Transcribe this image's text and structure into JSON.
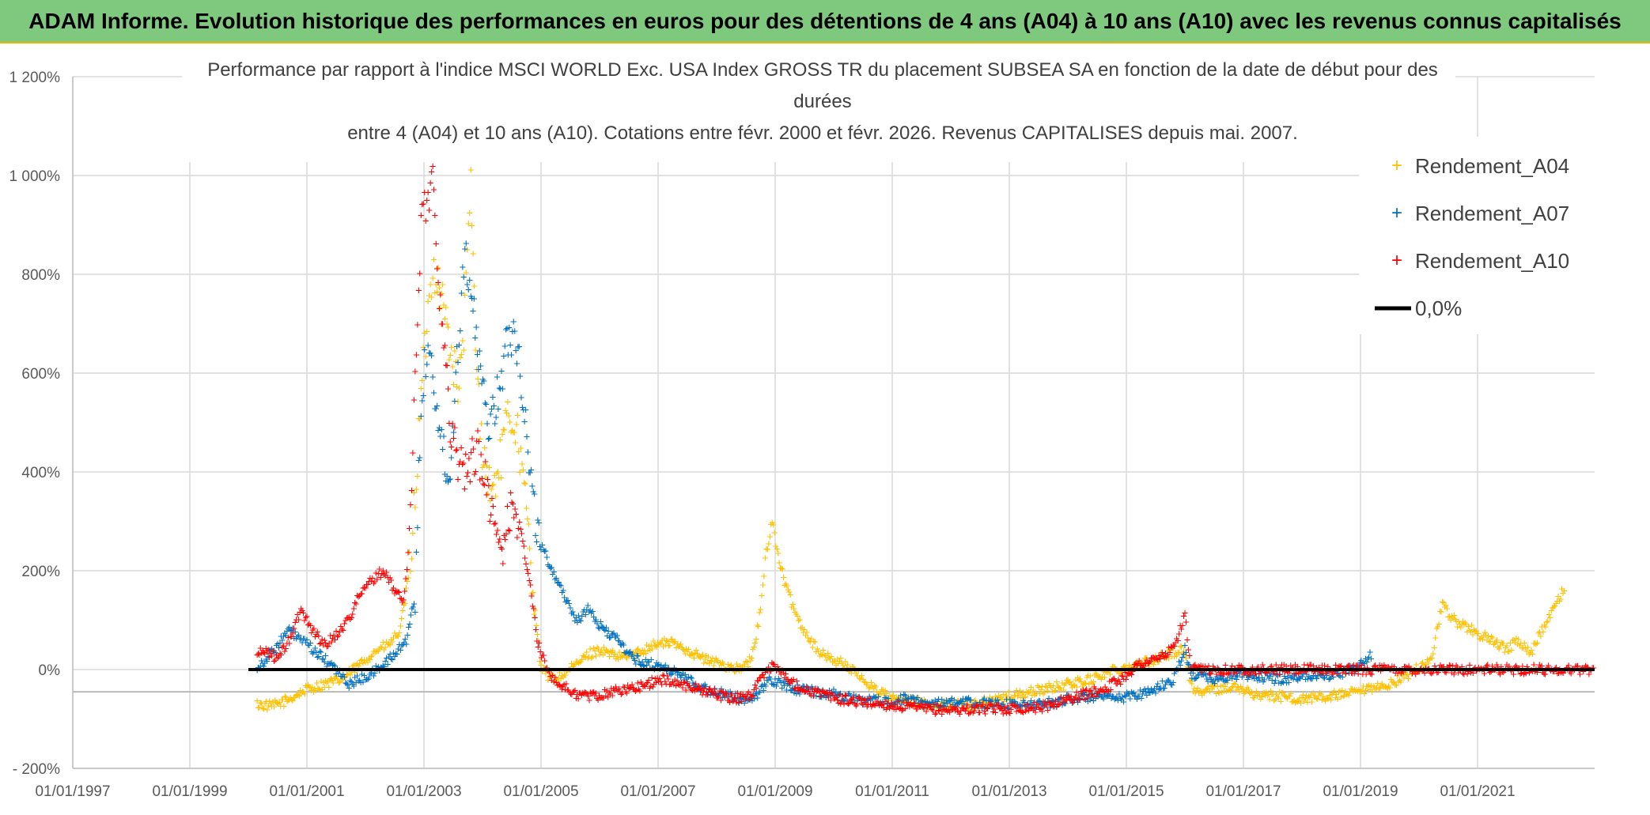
{
  "header": {
    "title": "ADAM Informe. Evolution historique des performances en euros pour des détentions de 4 ans (A04) à 10 ans (A10) avec les revenus connus capitalisés"
  },
  "chart_data": {
    "type": "scatter",
    "title_lines": [
      "Performance par rapport à l'indice MSCI WORLD Exc. USA Index GROSS TR  du placement SUBSEA SA en fonction de la date de début pour des",
      "durées",
      "entre 4 (A04) et 10 ans (A10). Cotations entre févr. 2000 et févr. 2026. Revenus CAPITALISES depuis mai. 2007."
    ],
    "xlabel": "",
    "ylabel": "",
    "x_tick_labels": [
      "01/01/1997",
      "01/01/1999",
      "01/01/2001",
      "01/01/2003",
      "01/01/2005",
      "01/01/2007",
      "01/01/2009",
      "01/01/2011",
      "01/01/2013",
      "01/01/2015",
      "01/01/2017",
      "01/01/2019",
      "01/01/2021"
    ],
    "x_tick_years": [
      1997,
      1999,
      2001,
      2003,
      2005,
      2007,
      2009,
      2011,
      2013,
      2015,
      2017,
      2019,
      2021
    ],
    "xlim": [
      1997.0,
      2023.0
    ],
    "y_tick_labels": [
      "- 200%",
      "0%",
      "200%",
      "400%",
      "600%",
      "800%",
      "1 000%",
      "1 200%"
    ],
    "y_tick_values": [
      -200,
      0,
      200,
      400,
      600,
      800,
      1000,
      1200
    ],
    "ylim": [
      -200,
      1200
    ],
    "legend_position": "top-right",
    "series": [
      {
        "name": "Rendement_A04",
        "marker": "+",
        "color": "#ffc000",
        "x": [
          2000.15,
          2000.4,
          2000.7,
          2001.0,
          2001.3,
          2001.6,
          2001.8,
          2002.0,
          2002.2,
          2002.4,
          2002.6,
          2002.75,
          2002.85,
          2002.95,
          2003.05,
          2003.15,
          2003.3,
          2003.45,
          2003.6,
          2003.7,
          2003.8,
          2003.9,
          2004.0,
          2004.15,
          2004.3,
          2004.45,
          2004.6,
          2004.75,
          2004.9,
          2005.0,
          2005.2,
          2005.4,
          2005.6,
          2005.8,
          2006.0,
          2006.3,
          2006.6,
          2006.9,
          2007.2,
          2007.5,
          2007.8,
          2008.1,
          2008.4,
          2008.6,
          2008.75,
          2008.85,
          2008.95,
          2009.05,
          2009.2,
          2009.4,
          2009.6,
          2009.8,
          2010.0,
          2010.2,
          2010.4,
          2010.6,
          2010.8,
          2011.0,
          2011.3,
          2011.6,
          2012.0,
          2012.4,
          2012.8,
          2013.2,
          2013.6,
          2014.0,
          2014.4,
          2014.8,
          2015.2,
          2015.5,
          2015.8,
          2016.0,
          2016.1,
          2016.2,
          2016.5,
          2016.8,
          2017.2,
          2017.6,
          2018.0,
          2018.4,
          2018.8,
          2019.2,
          2019.5,
          2019.8,
          2020.1,
          2020.2,
          2020.4,
          2020.6,
          2020.9,
          2021.2,
          2021.5,
          2021.7,
          2021.9,
          2022.1,
          2022.3,
          2022.5
        ],
        "values": [
          -70,
          -75,
          -60,
          -40,
          -30,
          -20,
          0,
          20,
          40,
          50,
          80,
          200,
          350,
          550,
          700,
          820,
          760,
          650,
          560,
          720,
          980,
          600,
          450,
          350,
          420,
          520,
          480,
          320,
          120,
          0,
          -20,
          -10,
          10,
          30,
          40,
          25,
          30,
          50,
          55,
          40,
          20,
          10,
          0,
          20,
          120,
          240,
          300,
          230,
          160,
          100,
          60,
          30,
          20,
          10,
          -10,
          -30,
          -45,
          -60,
          -65,
          -70,
          -72,
          -70,
          -60,
          -50,
          -40,
          -30,
          -20,
          0,
          10,
          20,
          35,
          40,
          -30,
          -45,
          -40,
          -35,
          -50,
          -55,
          -60,
          -55,
          -50,
          -40,
          -30,
          -10,
          10,
          20,
          130,
          100,
          80,
          60,
          40,
          60,
          30,
          80,
          120,
          170
        ]
      },
      {
        "name": "Rendement_A07",
        "marker": "+",
        "color": "#0070c0",
        "x": [
          2000.15,
          2000.3,
          2000.5,
          2000.7,
          2000.9,
          2001.1,
          2001.3,
          2001.5,
          2001.7,
          2001.9,
          2002.1,
          2002.3,
          2002.5,
          2002.7,
          2002.85,
          2002.95,
          2003.05,
          2003.15,
          2003.3,
          2003.45,
          2003.6,
          2003.7,
          2003.8,
          2003.95,
          2004.1,
          2004.25,
          2004.4,
          2004.55,
          2004.7,
          2004.85,
          2005.0,
          2005.2,
          2005.4,
          2005.6,
          2005.8,
          2006.0,
          2006.3,
          2006.6,
          2006.9,
          2007.2,
          2007.5,
          2007.8,
          2008.1,
          2008.4,
          2008.7,
          2008.9,
          2009.1,
          2009.4,
          2009.7,
          2010.0,
          2010.4,
          2010.8,
          2011.2,
          2011.6,
          2012.0,
          2012.4,
          2012.8,
          2013.2,
          2013.6,
          2014.0,
          2014.4,
          2014.8,
          2015.2,
          2015.5,
          2015.8,
          2016.0,
          2016.1,
          2016.3,
          2016.6,
          2016.9,
          2017.3,
          2017.7,
          2018.1,
          2018.5,
          2018.9,
          2019.2
        ],
        "values": [
          5,
          20,
          50,
          80,
          60,
          40,
          20,
          0,
          -30,
          -20,
          -10,
          10,
          30,
          60,
          150,
          550,
          650,
          600,
          450,
          400,
          700,
          850,
          780,
          600,
          500,
          550,
          650,
          700,
          550,
          350,
          250,
          200,
          150,
          100,
          120,
          90,
          60,
          20,
          10,
          0,
          -20,
          -40,
          -50,
          -60,
          -55,
          -20,
          -30,
          -40,
          -45,
          -50,
          -60,
          -65,
          -60,
          -70,
          -65,
          -68,
          -70,
          -72,
          -70,
          -60,
          -55,
          -60,
          -50,
          -40,
          -20,
          40,
          -10,
          -15,
          -20,
          -10,
          -15,
          -20,
          -10,
          -10,
          0,
          30
        ]
      },
      {
        "name": "Rendement_A10",
        "marker": "+",
        "color": "#ff0000",
        "x": [
          2000.15,
          2000.3,
          2000.5,
          2000.7,
          2000.9,
          2001.1,
          2001.3,
          2001.5,
          2001.7,
          2001.9,
          2002.1,
          2002.3,
          2002.5,
          2002.65,
          2002.75,
          2002.85,
          2002.95,
          2003.05,
          2003.15,
          2003.3,
          2003.45,
          2003.6,
          2003.75,
          2003.9,
          2004.05,
          2004.2,
          2004.35,
          2004.5,
          2004.65,
          2004.8,
          2004.95,
          2005.1,
          2005.3,
          2005.6,
          2005.9,
          2006.2,
          2006.5,
          2006.8,
          2007.1,
          2007.4,
          2007.7,
          2008.0,
          2008.3,
          2008.6,
          2008.85,
          2009.0,
          2009.2,
          2009.5,
          2009.8,
          2010.1,
          2010.4,
          2010.8,
          2011.2,
          2011.6,
          2012.0,
          2012.4,
          2012.8,
          2013.2,
          2013.6,
          2014.0,
          2014.3,
          2014.6,
          2014.9,
          2015.2,
          2015.5,
          2015.8,
          2016.0,
          2016.1,
          2016.5,
          2017.0,
          2017.5,
          2018.0,
          2018.5,
          2019.0,
          2019.5,
          2020.0,
          2020.5,
          2021.0,
          2021.5,
          2022.0,
          2022.5,
          2023.0
        ],
        "values": [
          30,
          40,
          20,
          60,
          120,
          80,
          50,
          70,
          100,
          150,
          180,
          200,
          160,
          140,
          250,
          600,
          900,
          950,
          1000,
          700,
          500,
          420,
          400,
          450,
          380,
          300,
          230,
          350,
          280,
          180,
          50,
          0,
          -30,
          -50,
          -55,
          -45,
          -40,
          -30,
          -20,
          -30,
          -40,
          -50,
          -60,
          -50,
          0,
          10,
          -20,
          -40,
          -50,
          -60,
          -65,
          -70,
          -75,
          -80,
          -82,
          -80,
          -80,
          -78,
          -75,
          -60,
          -50,
          -40,
          -20,
          10,
          20,
          40,
          110,
          0,
          0,
          0,
          0,
          0,
          0,
          0,
          0,
          0,
          0,
          0,
          0,
          0,
          0,
          0
        ]
      },
      {
        "name": "0,0%",
        "marker": "line",
        "color": "#000000",
        "x": [
          2000.0,
          2023.0
        ],
        "values": [
          0,
          0
        ]
      }
    ]
  }
}
